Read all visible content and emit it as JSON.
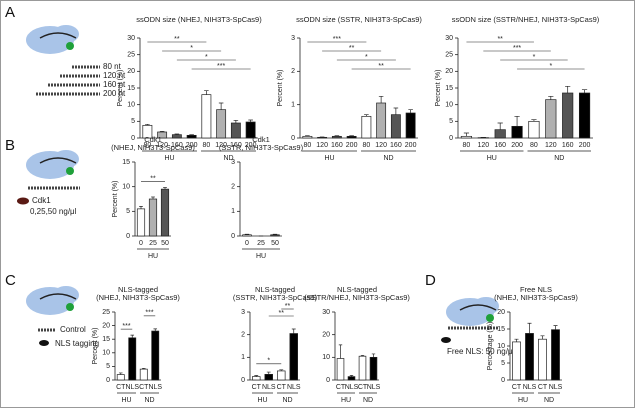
{
  "panels": {
    "a": "A",
    "b": "B",
    "c": "C",
    "d": "D"
  },
  "diagram": {
    "sizes": [
      "80 nt",
      "120 nt",
      "160 nt",
      "200 nt"
    ],
    "cdk1": "Cdk1",
    "dose": "0,25,50 ng/μl",
    "control": "Control",
    "nls": "NLS tagging",
    "free": "Free NLS: 50 ng/μL"
  },
  "chart_data": [
    {
      "type": "bar",
      "title": "ssODN size (NHEJ, NIH3T3-SpCas9)",
      "ylabel": "Percent (%)",
      "categories": [
        "80",
        "120",
        "160",
        "200",
        "80",
        "120",
        "160",
        "200"
      ],
      "groups": [
        "HU",
        "ND"
      ],
      "values": [
        3.8,
        1.8,
        1.0,
        0.8,
        13,
        8.5,
        4.5,
        4.8
      ],
      "errors": [
        0.3,
        0.2,
        0.2,
        0.2,
        1.2,
        2.0,
        0.8,
        0.6
      ],
      "colors": [
        "#ffffff",
        "#b0b0b0",
        "#555555",
        "#000000",
        "#ffffff",
        "#b0b0b0",
        "#555555",
        "#000000"
      ],
      "ylim": [
        0,
        30
      ],
      "yticks": [
        0,
        5,
        10,
        15,
        20,
        25,
        30
      ],
      "significance": [
        "**",
        "*",
        "*",
        "***"
      ]
    },
    {
      "type": "bar",
      "title": "ssODN size (SSTR, NIH3T3-SpCas9)",
      "ylabel": "Percent (%)",
      "categories": [
        "80",
        "120",
        "160",
        "200",
        "80",
        "120",
        "160",
        "200"
      ],
      "groups": [
        "HU",
        "ND"
      ],
      "values": [
        0.05,
        0.02,
        0.05,
        0.05,
        0.65,
        1.05,
        0.7,
        0.75
      ],
      "errors": [
        0.02,
        0.01,
        0.02,
        0.02,
        0.05,
        0.2,
        0.2,
        0.1
      ],
      "colors": [
        "#ffffff",
        "#b0b0b0",
        "#555555",
        "#000000",
        "#ffffff",
        "#b0b0b0",
        "#555555",
        "#000000"
      ],
      "ylim": [
        0,
        3
      ],
      "yticks": [
        0,
        1,
        2,
        3
      ],
      "significance": [
        "***",
        "**",
        "*",
        "**"
      ]
    },
    {
      "type": "bar",
      "title": "ssODN size (SSTR/NHEJ, NIH3T3-SpCas9)",
      "ylabel": "Percent (%)",
      "categories": [
        "80",
        "120",
        "160",
        "200",
        "80",
        "120",
        "160",
        "200"
      ],
      "groups": [
        "HU",
        "ND"
      ],
      "values": [
        0.5,
        0.1,
        2.5,
        3.5,
        5,
        11.5,
        13.5,
        13.5
      ],
      "errors": [
        1.0,
        0.1,
        2.0,
        3.0,
        0.5,
        1.0,
        2.0,
        1.0
      ],
      "colors": [
        "#ffffff",
        "#b0b0b0",
        "#555555",
        "#000000",
        "#ffffff",
        "#b0b0b0",
        "#555555",
        "#000000"
      ],
      "ylim": [
        0,
        30
      ],
      "yticks": [
        0,
        5,
        10,
        15,
        20,
        25,
        30
      ],
      "significance": [
        "**",
        "***",
        "*",
        "*"
      ]
    },
    {
      "type": "bar",
      "title": "Cdk1",
      "subtitle": "(NHEJ, NIH3T3-SpCas9)",
      "ylabel": "Percent (%)",
      "categories": [
        "0",
        "25",
        "50"
      ],
      "groups": [
        "HU"
      ],
      "values": [
        5.5,
        7.5,
        9.5
      ],
      "errors": [
        0.5,
        0.4,
        0.3
      ],
      "colors": [
        "#ffffff",
        "#b0b0b0",
        "#555555"
      ],
      "ylim": [
        0,
        15
      ],
      "yticks": [
        0,
        5,
        10,
        15
      ],
      "significance": [
        "**"
      ]
    },
    {
      "type": "bar",
      "title": "Cdk1",
      "subtitle": "(SSTR, NIH3T3-SpCas9)",
      "categories": [
        "0",
        "25",
        "50"
      ],
      "groups": [
        "HU"
      ],
      "values": [
        0.05,
        0.0,
        0.05
      ],
      "errors": [
        0.02,
        0.0,
        0.02
      ],
      "colors": [
        "#ffffff",
        "#b0b0b0",
        "#555555"
      ],
      "ylim": [
        0,
        3
      ],
      "yticks": [
        0,
        1,
        2,
        3
      ]
    },
    {
      "type": "bar",
      "title": "NLS-tagged",
      "subtitle": "(NHEJ, NIH3T3-SpCas9)",
      "ylabel": "Percent (%)",
      "categories": [
        "CT",
        "NLS",
        "CT",
        "NLS"
      ],
      "groups": [
        "HU",
        "ND"
      ],
      "values": [
        2,
        15.5,
        4,
        18
      ],
      "errors": [
        0.6,
        1.0,
        0.3,
        0.8
      ],
      "colors": [
        "#ffffff",
        "#000000",
        "#ffffff",
        "#000000"
      ],
      "ylim": [
        0,
        25
      ],
      "yticks": [
        0,
        5,
        10,
        15,
        20,
        25
      ],
      "significance": [
        "***",
        "***"
      ]
    },
    {
      "type": "bar",
      "title": "NLS-tagged",
      "subtitle": "(SSTR, NIH3T3-SpCas9)",
      "categories": [
        "CT",
        "NLS",
        "CT",
        "NLS"
      ],
      "groups": [
        "HU",
        "ND"
      ],
      "values": [
        0.15,
        0.25,
        0.4,
        2.05
      ],
      "errors": [
        0.05,
        0.1,
        0.05,
        0.2
      ],
      "colors": [
        "#ffffff",
        "#000000",
        "#ffffff",
        "#000000"
      ],
      "ylim": [
        0,
        3
      ],
      "yticks": [
        0,
        1,
        2,
        3
      ],
      "significance": [
        "*",
        "**",
        "**"
      ]
    },
    {
      "type": "bar",
      "title": "NLS-tagged",
      "subtitle": "(SSTR/NHEJ, NIH3T3-SpCas9)",
      "categories": [
        "CT",
        "NLS",
        "CT",
        "NLS"
      ],
      "groups": [
        "HU",
        "ND"
      ],
      "values": [
        9.5,
        1.5,
        10.5,
        10
      ],
      "errors": [
        6.0,
        0.5,
        0.3,
        1.5
      ],
      "colors": [
        "#ffffff",
        "#000000",
        "#ffffff",
        "#000000"
      ],
      "ylim": [
        0,
        30
      ],
      "yticks": [
        0,
        10,
        20,
        30
      ]
    },
    {
      "type": "bar",
      "title": "Free NLS",
      "subtitle": "(NHEJ, NIH3T3-SpCas9)",
      "ylabel": "Percentage (%)",
      "categories": [
        "CT",
        "NLS",
        "CT",
        "NLS"
      ],
      "groups": [
        "HU",
        "ND"
      ],
      "values": [
        11.2,
        13.7,
        12,
        14.8
      ],
      "errors": [
        0.8,
        3.0,
        1.0,
        1.2
      ],
      "colors": [
        "#ffffff",
        "#000000",
        "#ffffff",
        "#000000"
      ],
      "ylim": [
        0,
        20
      ],
      "yticks": [
        0,
        5,
        10,
        15,
        20
      ]
    }
  ]
}
